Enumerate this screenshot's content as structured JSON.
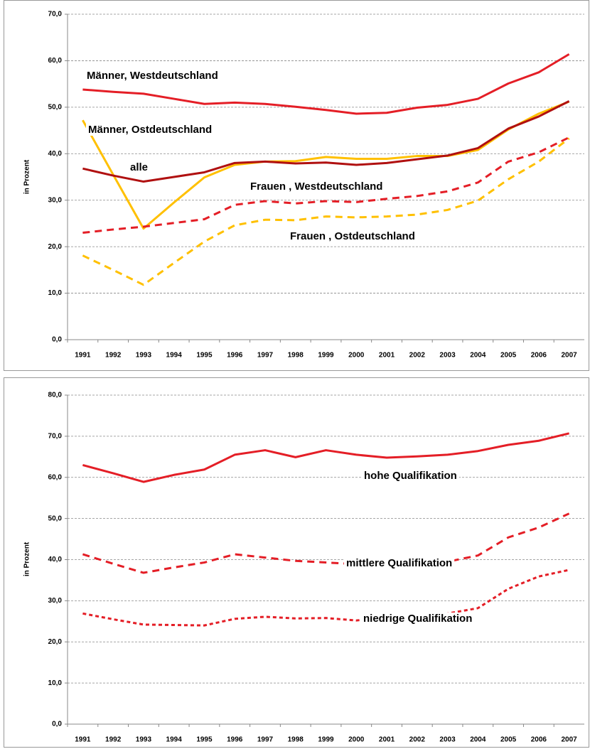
{
  "chart_data": [
    {
      "type": "line",
      "y_label": "in Prozent",
      "categories": [
        "1991",
        "1992",
        "1993",
        "1994",
        "1995",
        "1996",
        "1997",
        "1998",
        "1999",
        "2000",
        "2001",
        "2002",
        "2003",
        "2004",
        "2005",
        "2006",
        "2007"
      ],
      "ylim": [
        0,
        70
      ],
      "yticks": [
        {
          "value": 0,
          "label": "0,0"
        },
        {
          "value": 10,
          "label": "10,0"
        },
        {
          "value": 20,
          "label": "20,0"
        },
        {
          "value": 30,
          "label": "30,0"
        },
        {
          "value": 40,
          "label": "40,0"
        },
        {
          "value": 50,
          "label": "50,0"
        },
        {
          "value": 60,
          "label": "60,0"
        },
        {
          "value": 70,
          "label": "70,0"
        }
      ],
      "grid": true,
      "series": [
        {
          "name": "Männer, Westdeutschland",
          "color": "#e41e26",
          "values": [
            53.8,
            53.3,
            52.9,
            51.8,
            50.7,
            51.0,
            50.7,
            50.1,
            49.4,
            48.6,
            48.8,
            49.9,
            50.5,
            51.8,
            55.1,
            57.5,
            61.4
          ]
        },
        {
          "name": "Männer, Ostdeutschland",
          "color": "#ffc000",
          "values": [
            47.2,
            35.5,
            23.9,
            29.5,
            34.9,
            37.6,
            38.3,
            38.4,
            39.3,
            38.9,
            38.9,
            39.5,
            39.5,
            40.8,
            45.2,
            48.6,
            51.2
          ]
        },
        {
          "name": "alle",
          "color": "#b01010",
          "values": [
            36.8,
            35.3,
            34.0,
            35.0,
            36.0,
            38.0,
            38.3,
            37.9,
            38.1,
            37.6,
            38.0,
            38.8,
            39.6,
            41.2,
            45.4,
            48.0,
            51.3
          ]
        },
        {
          "name": "Frauen , Westdeutschland",
          "color": "#e41e26",
          "dash": "long",
          "values": [
            23.0,
            23.7,
            24.3,
            25.1,
            25.9,
            29.0,
            29.8,
            29.3,
            29.8,
            29.6,
            30.3,
            30.9,
            31.9,
            33.8,
            38.3,
            40.3,
            43.5
          ]
        },
        {
          "name": "Frauen , Ostdeutschland",
          "color": "#ffc000",
          "dash": "long",
          "values": [
            18.1,
            15.0,
            11.8,
            16.5,
            21.1,
            24.6,
            25.8,
            25.7,
            26.5,
            26.3,
            26.5,
            26.9,
            27.9,
            29.9,
            34.5,
            38.3,
            43.3
          ]
        }
      ]
    },
    {
      "type": "line",
      "y_label": "in Prozent",
      "categories": [
        "1991",
        "1992",
        "1993",
        "1994",
        "1995",
        "1996",
        "1997",
        "1998",
        "1999",
        "2000",
        "2001",
        "2002",
        "2003",
        "2004",
        "2005",
        "2006",
        "2007"
      ],
      "ylim": [
        0,
        80
      ],
      "yticks": [
        {
          "value": 0,
          "label": "0,0"
        },
        {
          "value": 10,
          "label": "10,0"
        },
        {
          "value": 20,
          "label": "20,0"
        },
        {
          "value": 30,
          "label": "30,0"
        },
        {
          "value": 40,
          "label": "40,0"
        },
        {
          "value": 50,
          "label": "50,0"
        },
        {
          "value": 60,
          "label": "60,0"
        },
        {
          "value": 70,
          "label": "70,0"
        },
        {
          "value": 80,
          "label": "80,0"
        }
      ],
      "grid": true,
      "series": [
        {
          "name": "hohe Qualifikation",
          "color": "#e41e26",
          "values": [
            63.0,
            61.0,
            58.9,
            60.6,
            61.9,
            65.5,
            66.6,
            64.9,
            66.6,
            65.5,
            64.8,
            65.1,
            65.5,
            66.4,
            67.9,
            68.9,
            70.7
          ]
        },
        {
          "name": "mittlere Qualifikation",
          "color": "#e41e26",
          "dash": "long",
          "values": [
            41.3,
            39.0,
            36.8,
            38.1,
            39.3,
            41.3,
            40.5,
            39.7,
            39.3,
            38.9,
            38.6,
            39.5,
            39.5,
            41.0,
            45.4,
            47.8,
            51.2
          ]
        },
        {
          "name": "niedrige Qualifikation",
          "color": "#e41e26",
          "dash": "short",
          "values": [
            26.9,
            25.5,
            24.2,
            24.1,
            24.0,
            25.6,
            26.1,
            25.7,
            25.8,
            25.2,
            26.0,
            26.1,
            26.9,
            28.2,
            32.9,
            35.9,
            37.5
          ]
        }
      ]
    }
  ]
}
